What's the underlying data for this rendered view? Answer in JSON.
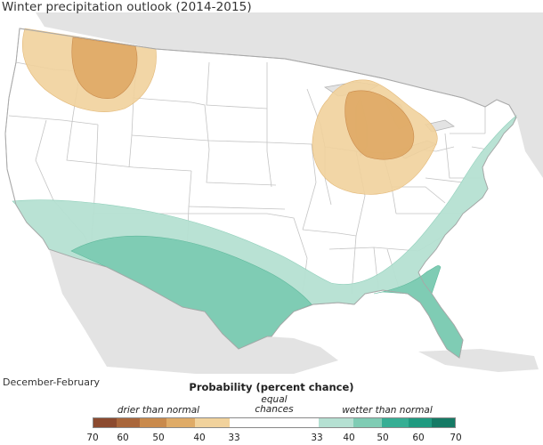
{
  "title": "Winter precipitation outlook (2014-2015)",
  "season": "December-February",
  "legend": {
    "title": "Probability (percent chance)",
    "drier_label": "drier than normal",
    "equal_label_1": "equal",
    "equal_label_2": "chances",
    "wetter_label": "wetter than normal",
    "swatches": [
      "#8c4a2f",
      "#a9663b",
      "#c98a4c",
      "#dfab67",
      "#f1d29c",
      "#ffffff",
      "#ffffff",
      "#b5e0d2",
      "#7fccb4",
      "#36ae94",
      "#1f9a80",
      "#157a65"
    ],
    "ticks": [
      "70",
      "60",
      "50",
      "40",
      "33",
      "33",
      "40",
      "50",
      "60",
      "70"
    ]
  },
  "colors": {
    "land_context": "#e3e3e3",
    "us_land": "#ffffff",
    "borders": "#bdbdbd",
    "dry_33_40": "#f1d29c",
    "dry_40_50": "#dfab67",
    "wet_33_40": "#b5e0d2",
    "wet_40_50": "#7fccb4"
  }
}
